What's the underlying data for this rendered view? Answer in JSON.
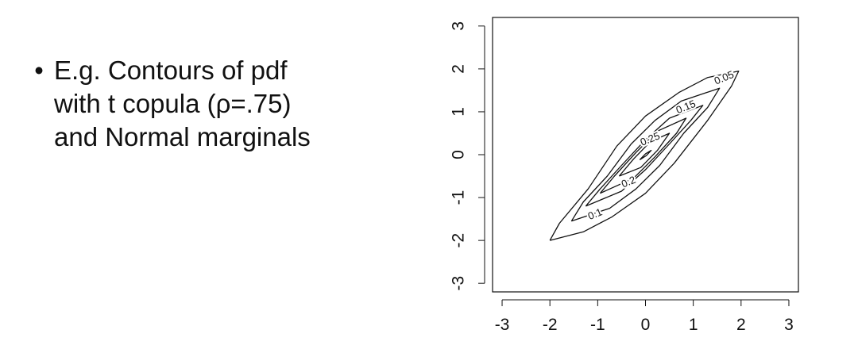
{
  "bullet": {
    "marker": "•",
    "lines": [
      "E.g. Contours of pdf",
      "with t copula (ρ=.75)",
      "and Normal marginals"
    ]
  },
  "chart_data": {
    "type": "contour",
    "title": "",
    "xlabel": "",
    "ylabel": "",
    "xlim": [
      -3.2,
      3.2
    ],
    "ylim": [
      -3.2,
      3.2
    ],
    "x_ticks": [
      -3,
      -2,
      -1,
      0,
      1,
      2,
      3
    ],
    "y_ticks": [
      -3,
      -2,
      -1,
      0,
      1,
      2,
      3
    ],
    "grid": false,
    "levels": [
      {
        "label": "0.05",
        "points": [
          [
            -2.0,
            -2.0
          ],
          [
            -1.8,
            -1.6
          ],
          [
            -1.2,
            -0.8
          ],
          [
            -0.6,
            0.2
          ],
          [
            0.0,
            0.9
          ],
          [
            0.7,
            1.45
          ],
          [
            1.3,
            1.8
          ],
          [
            1.95,
            1.95
          ],
          [
            1.8,
            1.6
          ],
          [
            1.3,
            0.8
          ],
          [
            0.6,
            -0.2
          ],
          [
            0.0,
            -0.9
          ],
          [
            -0.7,
            -1.45
          ],
          [
            -1.3,
            -1.8
          ],
          [
            -2.0,
            -2.0
          ]
        ]
      },
      {
        "label": "0.1",
        "points": [
          [
            -1.55,
            -1.55
          ],
          [
            -1.3,
            -1.1
          ],
          [
            -0.8,
            -0.5
          ],
          [
            -0.3,
            0.25
          ],
          [
            0.2,
            0.8
          ],
          [
            0.75,
            1.25
          ],
          [
            1.55,
            1.55
          ],
          [
            1.3,
            1.1
          ],
          [
            0.8,
            0.5
          ],
          [
            0.3,
            -0.25
          ],
          [
            -0.2,
            -0.8
          ],
          [
            -0.75,
            -1.25
          ],
          [
            -1.55,
            -1.55
          ]
        ]
      },
      {
        "label": "0.15",
        "points": [
          [
            -1.25,
            -1.2
          ],
          [
            -0.95,
            -0.8
          ],
          [
            -0.5,
            -0.25
          ],
          [
            0.0,
            0.35
          ],
          [
            0.5,
            0.85
          ],
          [
            1.2,
            1.15
          ],
          [
            0.95,
            0.8
          ],
          [
            0.5,
            0.25
          ],
          [
            0.0,
            -0.35
          ],
          [
            -0.5,
            -0.85
          ],
          [
            -1.25,
            -1.2
          ]
        ]
      },
      {
        "label": "0.2",
        "points": [
          [
            -0.95,
            -0.9
          ],
          [
            -0.65,
            -0.5
          ],
          [
            -0.2,
            0.05
          ],
          [
            0.25,
            0.55
          ],
          [
            0.85,
            0.85
          ],
          [
            0.65,
            0.5
          ],
          [
            0.2,
            -0.05
          ],
          [
            -0.25,
            -0.55
          ],
          [
            -0.95,
            -0.9
          ]
        ]
      },
      {
        "label": "0.25",
        "points": [
          [
            -0.55,
            -0.5
          ],
          [
            -0.25,
            -0.1
          ],
          [
            0.1,
            0.3
          ],
          [
            0.5,
            0.5
          ],
          [
            0.25,
            0.1
          ],
          [
            -0.1,
            -0.3
          ],
          [
            -0.55,
            -0.5
          ]
        ]
      },
      {
        "label": "",
        "points": [
          [
            -0.12,
            -0.12
          ],
          [
            0.02,
            -0.02
          ],
          [
            0.12,
            0.1
          ],
          [
            0.0,
            0.02
          ],
          [
            -0.12,
            -0.12
          ]
        ]
      }
    ],
    "contour_labels": [
      {
        "text": "0.05",
        "x": 1.65,
        "y": 1.78
      },
      {
        "text": "0.15",
        "x": 0.85,
        "y": 1.1
      },
      {
        "text": "0.25",
        "x": 0.1,
        "y": 0.35
      },
      {
        "text": "0.2",
        "x": -0.35,
        "y": -0.65
      },
      {
        "text": "0.1",
        "x": -1.05,
        "y": -1.4
      }
    ]
  }
}
